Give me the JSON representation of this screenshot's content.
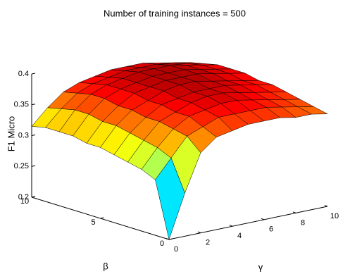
{
  "chart_data": {
    "type": "surface",
    "title": "Number of training instances = 500",
    "zlabel": "F1 Micro",
    "xlabel": "γ",
    "ylabel": "β",
    "x": [
      0,
      1,
      2,
      3,
      4,
      5,
      6,
      7,
      8,
      9,
      10
    ],
    "y": [
      0,
      1,
      2,
      3,
      4,
      5,
      6,
      7,
      8,
      9,
      10
    ],
    "z": [
      [
        0.2,
        0.27,
        0.33,
        0.35,
        0.355,
        0.36,
        0.36,
        0.36,
        0.355,
        0.355,
        0.35
      ],
      [
        0.29,
        0.32,
        0.35,
        0.36,
        0.37,
        0.37,
        0.37,
        0.37,
        0.365,
        0.36,
        0.355
      ],
      [
        0.3,
        0.33,
        0.355,
        0.37,
        0.375,
        0.38,
        0.38,
        0.375,
        0.37,
        0.365,
        0.36
      ],
      [
        0.305,
        0.335,
        0.36,
        0.37,
        0.38,
        0.385,
        0.385,
        0.38,
        0.375,
        0.37,
        0.365
      ],
      [
        0.31,
        0.34,
        0.36,
        0.375,
        0.38,
        0.385,
        0.385,
        0.385,
        0.38,
        0.375,
        0.37
      ],
      [
        0.315,
        0.345,
        0.365,
        0.375,
        0.385,
        0.39,
        0.39,
        0.385,
        0.38,
        0.375,
        0.37
      ],
      [
        0.315,
        0.345,
        0.365,
        0.38,
        0.385,
        0.39,
        0.39,
        0.39,
        0.385,
        0.38,
        0.375
      ],
      [
        0.32,
        0.35,
        0.37,
        0.38,
        0.385,
        0.39,
        0.39,
        0.39,
        0.385,
        0.38,
        0.375
      ],
      [
        0.32,
        0.35,
        0.37,
        0.38,
        0.385,
        0.39,
        0.39,
        0.39,
        0.385,
        0.38,
        0.375
      ],
      [
        0.32,
        0.345,
        0.365,
        0.375,
        0.38,
        0.385,
        0.385,
        0.385,
        0.38,
        0.375,
        0.37
      ],
      [
        0.315,
        0.34,
        0.36,
        0.37,
        0.375,
        0.38,
        0.38,
        0.38,
        0.375,
        0.37,
        0.365
      ]
    ],
    "xlim": [
      0,
      10
    ],
    "xticks": [
      0,
      2,
      4,
      6,
      8,
      10
    ],
    "ylim": [
      0,
      10
    ],
    "yticks": [
      0,
      5,
      10
    ],
    "zlim": [
      0.2,
      0.4
    ],
    "zticks": [
      0.2,
      0.25,
      0.3,
      0.35,
      0.4
    ],
    "colormap": "jet",
    "edgecolor": "#000000"
  }
}
